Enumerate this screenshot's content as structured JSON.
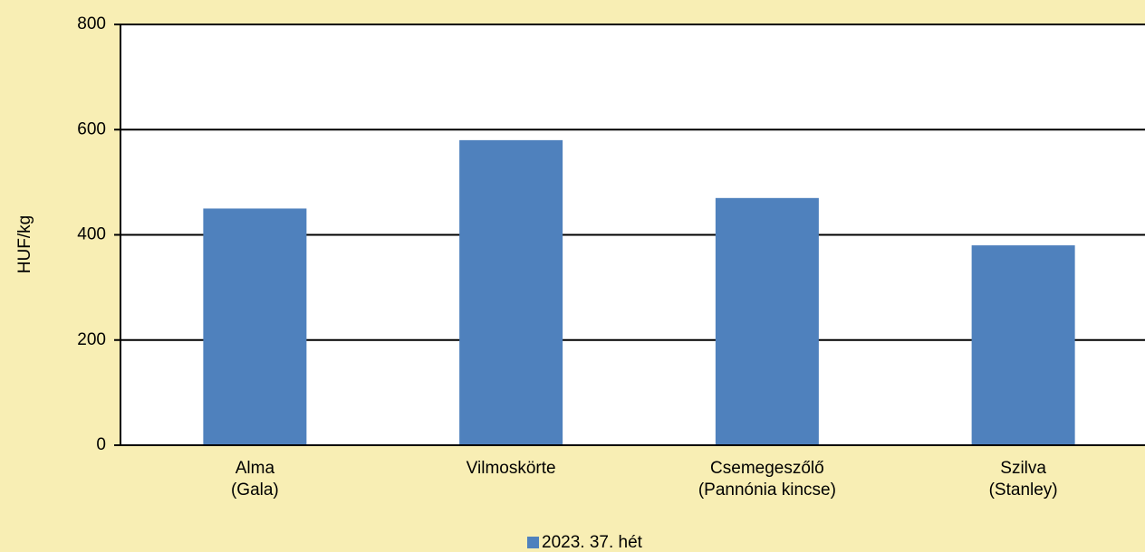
{
  "chart_data": {
    "type": "bar",
    "y_label": "HUF/kg",
    "categories": [
      "Alma\n(Gala)",
      "Vilmoskörte",
      "Csemegeszőlő\n(Pannónia kincse)",
      "Szilva\n(Stanley)"
    ],
    "series": [
      {
        "name": "2023. 37. hét",
        "color": "#4f81bd",
        "values": [
          450,
          580,
          470,
          380
        ]
      }
    ],
    "ylim": [
      0,
      800
    ],
    "yticks": [
      0,
      200,
      400,
      600,
      800
    ],
    "grid": true,
    "legend": "bottom"
  }
}
